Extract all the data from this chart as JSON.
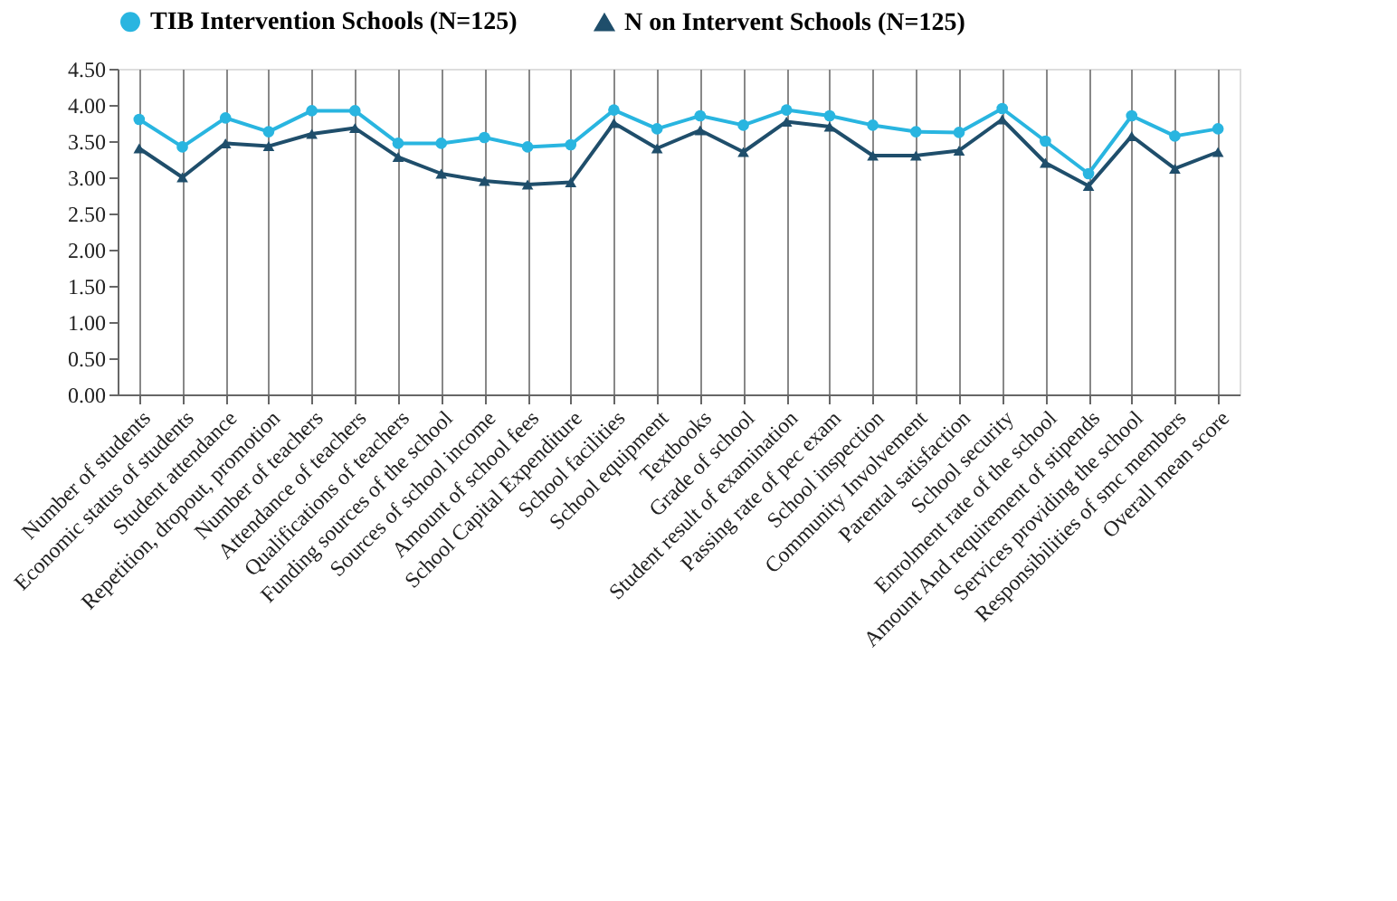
{
  "chart_data": {
    "type": "line",
    "categories": [
      "Number of students",
      "Economic status of students",
      "Student attendance",
      "Repetition, dropout, promotion",
      "Number of teachers",
      "Attendance of teachers",
      "Qualifications of teachers",
      "Funding sources of the school",
      "Sources of school income",
      "Amount of school fees",
      "School Capital Expenditure",
      "School facilities",
      "School equipment",
      "Textbooks",
      "Grade of school",
      "Student result of examination",
      "Passing rate of pec exam",
      "School inspection",
      "Community Involvement",
      "Parental satisfaction",
      "School security",
      "Enrolment rate of the school",
      "Amount And requirement of stipends",
      "Services providing the school",
      "Responsibilities of smc members",
      "Overall mean score"
    ],
    "series": [
      {
        "name": "TIB Intervention Schools (N=125)",
        "color": "#29b5e0",
        "marker": "circle",
        "values": [
          3.8,
          3.42,
          3.82,
          3.63,
          3.92,
          3.92,
          3.47,
          3.47,
          3.55,
          3.42,
          3.45,
          3.93,
          3.67,
          3.85,
          3.72,
          3.93,
          3.85,
          3.72,
          3.63,
          3.62,
          3.95,
          3.5,
          3.05,
          3.85,
          3.57,
          3.67
        ]
      },
      {
        "name": "N on Intervent Schools (N=125)",
        "color": "#1f4e6b",
        "marker": "triangle",
        "values": [
          3.4,
          3.0,
          3.47,
          3.43,
          3.6,
          3.68,
          3.28,
          3.05,
          2.95,
          2.9,
          2.93,
          3.75,
          3.4,
          3.65,
          3.35,
          3.77,
          3.7,
          3.3,
          3.3,
          3.37,
          3.8,
          3.2,
          2.88,
          3.57,
          3.12,
          3.35
        ]
      }
    ],
    "ylim": [
      0,
      4.5
    ],
    "yticks": [
      {
        "value": 0,
        "label": "0.00"
      },
      {
        "value": 0.5,
        "label": "0.50"
      },
      {
        "value": 1,
        "label": "1.00"
      },
      {
        "value": 1.5,
        "label": "1.50"
      },
      {
        "value": 2,
        "label": "2.00"
      },
      {
        "value": 2.5,
        "label": "2.50"
      },
      {
        "value": 3,
        "label": "3.00"
      },
      {
        "value": 3.5,
        "label": "3.50"
      },
      {
        "value": 4,
        "label": "4.00"
      },
      {
        "value": 4.5,
        "label": "4.50"
      }
    ],
    "grid": "x",
    "legend": "top",
    "line_style": "solid"
  }
}
